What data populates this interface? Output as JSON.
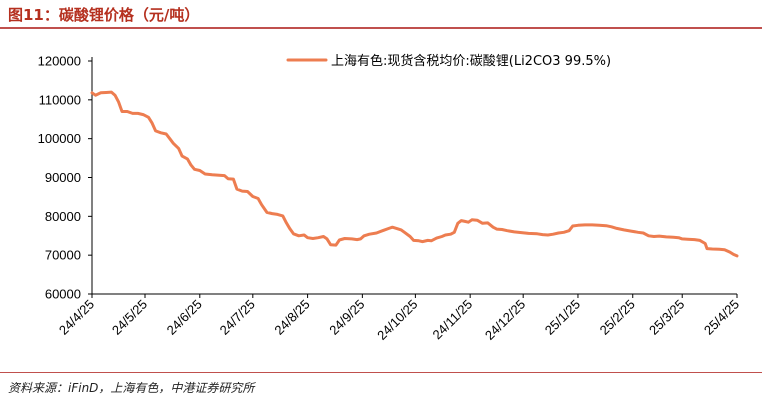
{
  "header": {
    "title": "图11：碳酸锂价格（元/吨）"
  },
  "footer": {
    "source": "资料来源：iFinD，上海有色，中港证券研究所"
  },
  "colors": {
    "accent": "#c0504d",
    "title": "#b5301f",
    "series": "#ed7d50"
  },
  "chart_data": {
    "type": "line",
    "title": "",
    "xlabel": "",
    "ylabel": "",
    "ylim": [
      60000,
      120000
    ],
    "y_ticks": [
      "60000",
      "70000",
      "80000",
      "90000",
      "100000",
      "110000",
      "120000"
    ],
    "y_tick_values": [
      60000,
      70000,
      80000,
      90000,
      100000,
      110000,
      120000
    ],
    "x_tick_labels": [
      "24/4/25",
      "24/5/25",
      "24/6/25",
      "24/7/25",
      "24/8/25",
      "24/9/25",
      "24/10/25",
      "24/11/25",
      "24/12/25",
      "25/1/25",
      "25/2/25",
      "25/3/25",
      "25/4/25"
    ],
    "x_tick_dates": [
      "2024-04-25",
      "2024-05-25",
      "2024-06-25",
      "2024-07-25",
      "2024-08-25",
      "2024-09-25",
      "2024-10-25",
      "2024-11-25",
      "2024-12-25",
      "2025-01-25",
      "2025-02-25",
      "2025-03-25",
      "2025-04-25"
    ],
    "grid": false,
    "legend_position": "top-right",
    "series": [
      {
        "name": "上海有色:现货含税均价:碳酸锂(Li2CO3 99.5%)",
        "color": "#ed7d50",
        "points": [
          [
            "2024-04-25",
            111800
          ],
          [
            "2024-04-27",
            111200
          ],
          [
            "2024-04-30",
            111800
          ],
          [
            "2024-05-03",
            111900
          ],
          [
            "2024-05-06",
            112000
          ],
          [
            "2024-05-08",
            111200
          ],
          [
            "2024-05-10",
            109500
          ],
          [
            "2024-05-12",
            107000
          ],
          [
            "2024-05-15",
            107000
          ],
          [
            "2024-05-18",
            106500
          ],
          [
            "2024-05-21",
            106500
          ],
          [
            "2024-05-24",
            106200
          ],
          [
            "2024-05-27",
            105500
          ],
          [
            "2024-05-29",
            104000
          ],
          [
            "2024-05-31",
            102000
          ],
          [
            "2024-06-03",
            101500
          ],
          [
            "2024-06-06",
            101200
          ],
          [
            "2024-06-08",
            100000
          ],
          [
            "2024-06-10",
            98800
          ],
          [
            "2024-06-13",
            97500
          ],
          [
            "2024-06-15",
            95500
          ],
          [
            "2024-06-18",
            94800
          ],
          [
            "2024-06-20",
            93200
          ],
          [
            "2024-06-22",
            92100
          ],
          [
            "2024-06-25",
            91800
          ],
          [
            "2024-06-28",
            90900
          ],
          [
            "2024-07-02",
            90700
          ],
          [
            "2024-07-06",
            90600
          ],
          [
            "2024-07-09",
            90500
          ],
          [
            "2024-07-11",
            89700
          ],
          [
            "2024-07-14",
            89600
          ],
          [
            "2024-07-16",
            87000
          ],
          [
            "2024-07-19",
            86500
          ],
          [
            "2024-07-22",
            86400
          ],
          [
            "2024-07-25",
            85100
          ],
          [
            "2024-07-28",
            84600
          ],
          [
            "2024-07-30",
            83000
          ],
          [
            "2024-08-02",
            81000
          ],
          [
            "2024-08-05",
            80700
          ],
          [
            "2024-08-08",
            80500
          ],
          [
            "2024-08-11",
            80100
          ],
          [
            "2024-08-13",
            78300
          ],
          [
            "2024-08-15",
            76800
          ],
          [
            "2024-08-17",
            75500
          ],
          [
            "2024-08-20",
            75000
          ],
          [
            "2024-08-23",
            75200
          ],
          [
            "2024-08-25",
            74500
          ],
          [
            "2024-08-28",
            74300
          ],
          [
            "2024-08-31",
            74500
          ],
          [
            "2024-09-03",
            74800
          ],
          [
            "2024-09-05",
            74200
          ],
          [
            "2024-09-07",
            72700
          ],
          [
            "2024-09-10",
            72600
          ],
          [
            "2024-09-12",
            73900
          ],
          [
            "2024-09-15",
            74300
          ],
          [
            "2024-09-19",
            74200
          ],
          [
            "2024-09-22",
            74000
          ],
          [
            "2024-09-24",
            74200
          ],
          [
            "2024-09-26",
            75000
          ],
          [
            "2024-09-29",
            75400
          ],
          [
            "2024-10-03",
            75700
          ],
          [
            "2024-10-07",
            76400
          ],
          [
            "2024-10-10",
            76900
          ],
          [
            "2024-10-12",
            77200
          ],
          [
            "2024-10-15",
            76800
          ],
          [
            "2024-10-17",
            76500
          ],
          [
            "2024-10-19",
            75800
          ],
          [
            "2024-10-22",
            74800
          ],
          [
            "2024-10-24",
            73800
          ],
          [
            "2024-10-27",
            73700
          ],
          [
            "2024-10-29",
            73500
          ],
          [
            "2024-11-01",
            73800
          ],
          [
            "2024-11-03",
            73700
          ],
          [
            "2024-11-06",
            74400
          ],
          [
            "2024-11-09",
            74800
          ],
          [
            "2024-11-11",
            75200
          ],
          [
            "2024-11-14",
            75400
          ],
          [
            "2024-11-16",
            75900
          ],
          [
            "2024-11-18",
            78200
          ],
          [
            "2024-11-20",
            78900
          ],
          [
            "2024-11-22",
            78700
          ],
          [
            "2024-11-24",
            78500
          ],
          [
            "2024-11-26",
            79100
          ],
          [
            "2024-11-29",
            79000
          ],
          [
            "2024-12-02",
            78200
          ],
          [
            "2024-12-05",
            78300
          ],
          [
            "2024-12-08",
            77200
          ],
          [
            "2024-12-10",
            76700
          ],
          [
            "2024-12-13",
            76600
          ],
          [
            "2024-12-16",
            76300
          ],
          [
            "2024-12-20",
            76000
          ],
          [
            "2024-12-24",
            75800
          ],
          [
            "2024-12-28",
            75600
          ],
          [
            "2025-01-02",
            75500
          ],
          [
            "2025-01-05",
            75300
          ],
          [
            "2025-01-08",
            75200
          ],
          [
            "2025-01-11",
            75400
          ],
          [
            "2025-01-14",
            75700
          ],
          [
            "2025-01-17",
            75900
          ],
          [
            "2025-01-20",
            76300
          ],
          [
            "2025-01-22",
            77500
          ],
          [
            "2025-01-25",
            77700
          ],
          [
            "2025-01-29",
            77800
          ],
          [
            "2025-02-02",
            77800
          ],
          [
            "2025-02-06",
            77700
          ],
          [
            "2025-02-10",
            77600
          ],
          [
            "2025-02-13",
            77300
          ],
          [
            "2025-02-16",
            76900
          ],
          [
            "2025-02-20",
            76500
          ],
          [
            "2025-02-24",
            76200
          ],
          [
            "2025-02-28",
            75900
          ],
          [
            "2025-03-03",
            75700
          ],
          [
            "2025-03-06",
            75000
          ],
          [
            "2025-03-09",
            74800
          ],
          [
            "2025-03-12",
            74900
          ],
          [
            "2025-03-16",
            74700
          ],
          [
            "2025-03-20",
            74600
          ],
          [
            "2025-03-23",
            74500
          ],
          [
            "2025-03-25",
            74200
          ],
          [
            "2025-03-28",
            74100
          ],
          [
            "2025-04-01",
            74000
          ],
          [
            "2025-04-04",
            73800
          ],
          [
            "2025-04-07",
            73000
          ],
          [
            "2025-04-08",
            71700
          ],
          [
            "2025-04-11",
            71600
          ],
          [
            "2025-04-15",
            71500
          ],
          [
            "2025-04-18",
            71400
          ],
          [
            "2025-04-21",
            70800
          ],
          [
            "2025-04-23",
            70200
          ],
          [
            "2025-04-25",
            69800
          ]
        ]
      }
    ]
  }
}
